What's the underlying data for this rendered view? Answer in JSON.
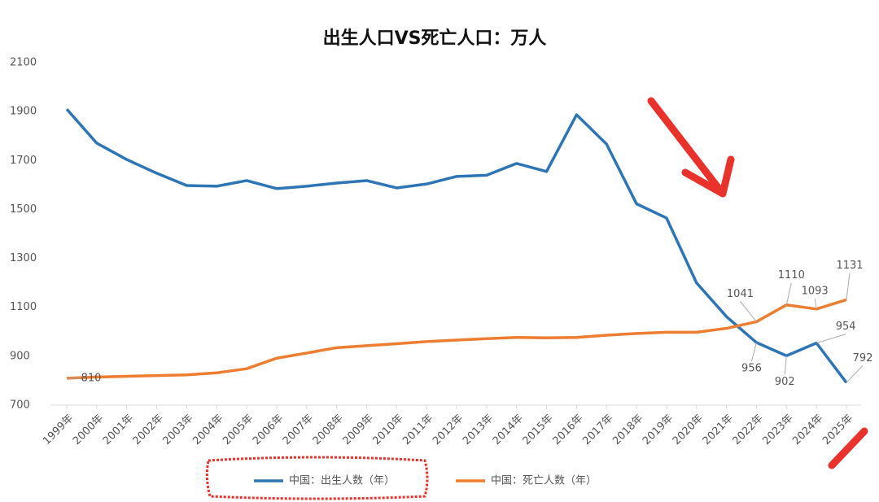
{
  "chart_data": {
    "type": "line",
    "title": "出生人口VS死亡人口：万人",
    "categories": [
      "1999年",
      "2000年",
      "2001年",
      "2002年",
      "2003年",
      "2004年",
      "2005年",
      "2006年",
      "2007年",
      "2008年",
      "2009年",
      "2010年",
      "2011年",
      "2012年",
      "2013年",
      "2014年",
      "2015年",
      "2016年",
      "2017年",
      "2018年",
      "2019年",
      "2020年",
      "2021年",
      "2022年",
      "2023年",
      "2024年",
      "2025年"
    ],
    "series": [
      {
        "name": "中国：出生人数（年）",
        "color": "#2e75b6",
        "values": [
          1910,
          1771,
          1704,
          1648,
          1598,
          1595,
          1618,
          1585,
          1595,
          1608,
          1618,
          1588,
          1604,
          1635,
          1640,
          1688,
          1655,
          1887,
          1767,
          1523,
          1465,
          1200,
          1062,
          956,
          902,
          954,
          792
        ],
        "value_labels": [
          null,
          null,
          null,
          null,
          null,
          null,
          null,
          null,
          null,
          null,
          null,
          null,
          null,
          null,
          null,
          null,
          null,
          null,
          null,
          null,
          null,
          null,
          null,
          "956",
          "902",
          "954",
          "792"
        ]
      },
      {
        "name": "中国：死亡人数（年）",
        "color": "#ed7d31",
        "values": [
          810,
          815,
          818,
          821,
          824,
          832,
          849,
          892,
          913,
          935,
          943,
          951,
          960,
          966,
          972,
          977,
          975,
          977,
          986,
          993,
          998,
          998,
          1014,
          1041,
          1110,
          1093,
          1131
        ],
        "value_labels": [
          "810",
          null,
          null,
          null,
          null,
          null,
          null,
          null,
          null,
          null,
          null,
          null,
          null,
          null,
          null,
          null,
          null,
          null,
          null,
          null,
          null,
          null,
          null,
          "1041",
          "1110",
          "1093",
          "1131"
        ]
      }
    ],
    "ylim": [
      700,
      2100
    ],
    "yticks": [
      700,
      900,
      1100,
      1300,
      1500,
      1700,
      1900,
      2100
    ],
    "grid": false,
    "legend": "bottom"
  }
}
